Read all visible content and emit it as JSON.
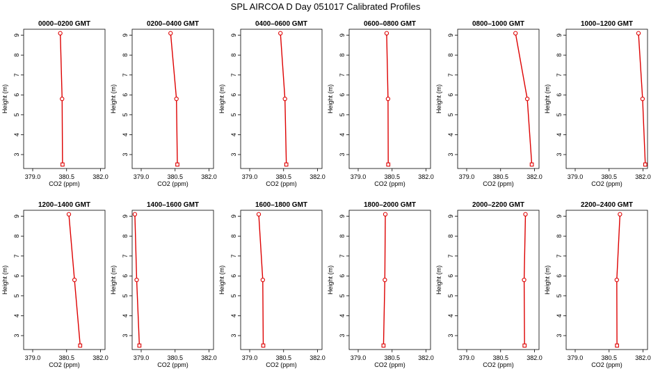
{
  "page_title": "SPL AIRCOA D  Day 051017  Calibrated Profiles",
  "chart_data": [
    {
      "type": "line",
      "title": "0000–0200 GMT",
      "xlabel": "CO2 (ppm)",
      "ylabel": "Height (m)",
      "xlim": [
        378.6,
        382.2
      ],
      "ylim": [
        2.3,
        9.3
      ],
      "xticks": [
        "379.0",
        "380.5",
        "382.0"
      ],
      "yticks": [
        "3",
        "4",
        "5",
        "6",
        "7",
        "8",
        "9"
      ],
      "color": "#dd0000",
      "grid": false,
      "points": [
        {
          "x": 380.32,
          "y": 2.5
        },
        {
          "x": 380.3,
          "y": 5.8
        },
        {
          "x": 380.22,
          "y": 9.1
        }
      ]
    },
    {
      "type": "line",
      "title": "0200–0400 GMT",
      "xlabel": "CO2 (ppm)",
      "ylabel": "Height (m)",
      "xlim": [
        378.6,
        382.2
      ],
      "ylim": [
        2.3,
        9.3
      ],
      "xticks": [
        "379.0",
        "380.5",
        "382.0"
      ],
      "yticks": [
        "3",
        "4",
        "5",
        "6",
        "7",
        "8",
        "9"
      ],
      "color": "#dd0000",
      "grid": false,
      "points": [
        {
          "x": 380.6,
          "y": 2.5
        },
        {
          "x": 380.56,
          "y": 5.8
        },
        {
          "x": 380.3,
          "y": 9.1
        }
      ]
    },
    {
      "type": "line",
      "title": "0400–0600 GMT",
      "xlabel": "CO2 (ppm)",
      "ylabel": "Height (m)",
      "xlim": [
        378.6,
        382.2
      ],
      "ylim": [
        2.3,
        9.3
      ],
      "xticks": [
        "379.0",
        "380.5",
        "382.0"
      ],
      "yticks": [
        "3",
        "4",
        "5",
        "6",
        "7",
        "8",
        "9"
      ],
      "color": "#dd0000",
      "grid": false,
      "points": [
        {
          "x": 380.62,
          "y": 2.5
        },
        {
          "x": 380.56,
          "y": 5.8
        },
        {
          "x": 380.36,
          "y": 9.1
        }
      ]
    },
    {
      "type": "line",
      "title": "0600–0800 GMT",
      "xlabel": "CO2 (ppm)",
      "ylabel": "Height (m)",
      "xlim": [
        378.6,
        382.2
      ],
      "ylim": [
        2.3,
        9.3
      ],
      "xticks": [
        "379.0",
        "380.5",
        "382.0"
      ],
      "yticks": [
        "3",
        "4",
        "5",
        "6",
        "7",
        "8",
        "9"
      ],
      "color": "#dd0000",
      "grid": false,
      "points": [
        {
          "x": 380.33,
          "y": 2.5
        },
        {
          "x": 380.32,
          "y": 5.8
        },
        {
          "x": 380.26,
          "y": 9.1
        }
      ]
    },
    {
      "type": "line",
      "title": "0800–1000 GMT",
      "xlabel": "CO2 (ppm)",
      "ylabel": "Height (m)",
      "xlim": [
        378.6,
        382.2
      ],
      "ylim": [
        2.3,
        9.3
      ],
      "xticks": [
        "379.0",
        "380.5",
        "382.0"
      ],
      "yticks": [
        "3",
        "4",
        "5",
        "6",
        "7",
        "8",
        "9"
      ],
      "color": "#dd0000",
      "grid": false,
      "points": [
        {
          "x": 381.88,
          "y": 2.5
        },
        {
          "x": 381.68,
          "y": 5.8
        },
        {
          "x": 381.16,
          "y": 9.1
        }
      ]
    },
    {
      "type": "line",
      "title": "1000–1200 GMT",
      "xlabel": "CO2 (ppm)",
      "ylabel": "Height (m)",
      "xlim": [
        378.6,
        382.2
      ],
      "ylim": [
        2.3,
        9.3
      ],
      "xticks": [
        "379.0",
        "380.5",
        "382.0"
      ],
      "yticks": [
        "3",
        "4",
        "5",
        "6",
        "7",
        "8",
        "9"
      ],
      "color": "#dd0000",
      "grid": false,
      "points": [
        {
          "x": 382.1,
          "y": 2.5
        },
        {
          "x": 381.98,
          "y": 5.8
        },
        {
          "x": 381.8,
          "y": 9.1
        }
      ]
    },
    {
      "type": "line",
      "title": "1200–1400 GMT",
      "xlabel": "CO2 (ppm)",
      "ylabel": "Height (m)",
      "xlim": [
        378.6,
        382.2
      ],
      "ylim": [
        2.3,
        9.3
      ],
      "xticks": [
        "379.0",
        "380.5",
        "382.0"
      ],
      "yticks": [
        "3",
        "4",
        "5",
        "6",
        "7",
        "8",
        "9"
      ],
      "color": "#dd0000",
      "grid": false,
      "points": [
        {
          "x": 381.1,
          "y": 2.5
        },
        {
          "x": 380.85,
          "y": 5.8
        },
        {
          "x": 380.6,
          "y": 9.1
        }
      ]
    },
    {
      "type": "line",
      "title": "1400–1600 GMT",
      "xlabel": "CO2 (ppm)",
      "ylabel": "Height (m)",
      "xlim": [
        378.6,
        382.2
      ],
      "ylim": [
        2.3,
        9.3
      ],
      "xticks": [
        "379.0",
        "380.5",
        "382.0"
      ],
      "yticks": [
        "3",
        "4",
        "5",
        "6",
        "7",
        "8",
        "9"
      ],
      "color": "#dd0000",
      "grid": false,
      "points": [
        {
          "x": 378.92,
          "y": 2.5
        },
        {
          "x": 378.8,
          "y": 5.8
        },
        {
          "x": 378.72,
          "y": 9.1
        }
      ]
    },
    {
      "type": "line",
      "title": "1600–1800 GMT",
      "xlabel": "CO2 (ppm)",
      "ylabel": "Height (m)",
      "xlim": [
        378.6,
        382.2
      ],
      "ylim": [
        2.3,
        9.3
      ],
      "xticks": [
        "379.0",
        "380.5",
        "382.0"
      ],
      "yticks": [
        "3",
        "4",
        "5",
        "6",
        "7",
        "8",
        "9"
      ],
      "color": "#dd0000",
      "grid": false,
      "points": [
        {
          "x": 379.6,
          "y": 2.5
        },
        {
          "x": 379.58,
          "y": 5.8
        },
        {
          "x": 379.4,
          "y": 9.1
        }
      ]
    },
    {
      "type": "line",
      "title": "1800–2000 GMT",
      "xlabel": "CO2 (ppm)",
      "ylabel": "Height (m)",
      "xlim": [
        378.6,
        382.2
      ],
      "ylim": [
        2.3,
        9.3
      ],
      "xticks": [
        "379.0",
        "380.5",
        "382.0"
      ],
      "yticks": [
        "3",
        "4",
        "5",
        "6",
        "7",
        "8",
        "9"
      ],
      "color": "#dd0000",
      "grid": false,
      "points": [
        {
          "x": 380.12,
          "y": 2.5
        },
        {
          "x": 380.18,
          "y": 5.8
        },
        {
          "x": 380.2,
          "y": 9.1
        }
      ]
    },
    {
      "type": "line",
      "title": "2000–2200 GMT",
      "xlabel": "CO2 (ppm)",
      "ylabel": "Height (m)",
      "xlim": [
        378.6,
        382.2
      ],
      "ylim": [
        2.3,
        9.3
      ],
      "xticks": [
        "379.0",
        "380.5",
        "382.0"
      ],
      "yticks": [
        "3",
        "4",
        "5",
        "6",
        "7",
        "8",
        "9"
      ],
      "color": "#dd0000",
      "grid": false,
      "points": [
        {
          "x": 381.56,
          "y": 2.5
        },
        {
          "x": 381.54,
          "y": 5.8
        },
        {
          "x": 381.6,
          "y": 9.1
        }
      ]
    },
    {
      "type": "line",
      "title": "2200–2400 GMT",
      "xlabel": "CO2 (ppm)",
      "ylabel": "Height (m)",
      "xlim": [
        378.6,
        382.2
      ],
      "ylim": [
        2.3,
        9.3
      ],
      "xticks": [
        "379.0",
        "380.5",
        "382.0"
      ],
      "yticks": [
        "3",
        "4",
        "5",
        "6",
        "7",
        "8",
        "9"
      ],
      "color": "#dd0000",
      "grid": false,
      "points": [
        {
          "x": 380.85,
          "y": 2.5
        },
        {
          "x": 380.84,
          "y": 5.8
        },
        {
          "x": 380.98,
          "y": 9.1
        }
      ]
    }
  ]
}
